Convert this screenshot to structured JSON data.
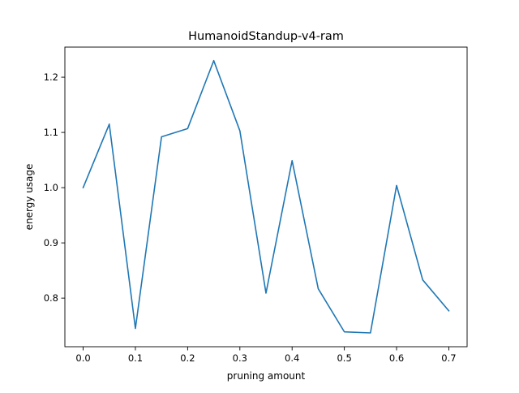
{
  "chart_data": {
    "type": "line",
    "title": "HumanoidStandup-v4-ram",
    "xlabel": "pruning amount",
    "ylabel": "energy usage",
    "x": [
      0.0,
      0.05,
      0.1,
      0.15,
      0.2,
      0.25,
      0.3,
      0.35,
      0.4,
      0.45,
      0.5,
      0.55,
      0.6,
      0.65,
      0.7
    ],
    "series": [
      {
        "values": [
          1.0,
          1.115,
          0.745,
          1.092,
          1.107,
          1.23,
          1.103,
          0.809,
          1.049,
          0.817,
          0.739,
          0.737,
          1.004,
          0.833,
          0.777
        ]
      }
    ],
    "xticks": [
      "0.0",
      "0.1",
      "0.2",
      "0.3",
      "0.4",
      "0.5",
      "0.6",
      "0.7"
    ],
    "yticks": [
      "0.8",
      "0.9",
      "1.0",
      "1.1",
      "1.2"
    ],
    "xlim": [
      -0.035,
      0.735
    ],
    "ylim": [
      0.712,
      1.2545
    ],
    "grid": false,
    "colors": {
      "line": "#1f77b4",
      "axes": "#000000",
      "background": "#ffffff"
    }
  }
}
